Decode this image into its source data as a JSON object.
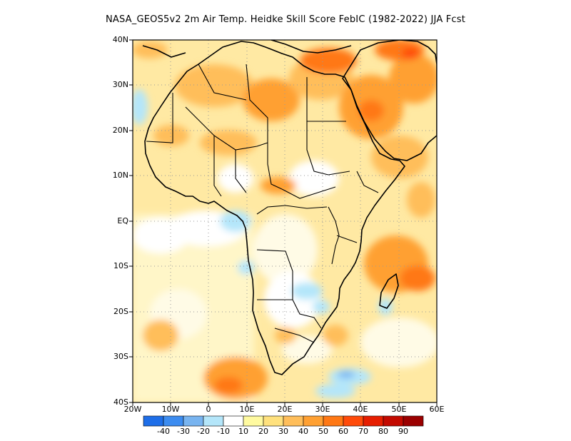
{
  "title": "NASA_GEOS5v2  2m Air Temp. Heidke Skill Score FebIC (1982-2022) JJA Fcst",
  "map": {
    "lat_labels": [
      "40N",
      "30N",
      "20N",
      "10N",
      "EQ",
      "10S",
      "20S",
      "30S",
      "40S"
    ],
    "lon_labels": [
      "20W",
      "10W",
      "0",
      "10E",
      "20E",
      "30E",
      "40E",
      "50E",
      "60E"
    ],
    "lat_range": [
      -40,
      40
    ],
    "lon_range": [
      -20,
      60
    ],
    "grid": "dotted"
  },
  "colorbar": {
    "labels": [
      "-40",
      "-30",
      "-20",
      "-10",
      "10",
      "20",
      "30",
      "40",
      "50",
      "60",
      "70",
      "80",
      "90"
    ],
    "colors": [
      "#1e6ee8",
      "#3c8cf0",
      "#78b4f0",
      "#b4e6fa",
      "#ffffff",
      "#fffaa0",
      "#ffe17d",
      "#ffbe5a",
      "#ffa032",
      "#ff7814",
      "#ff4b0a",
      "#e61e00",
      "#c30a00",
      "#9b0000"
    ]
  }
}
